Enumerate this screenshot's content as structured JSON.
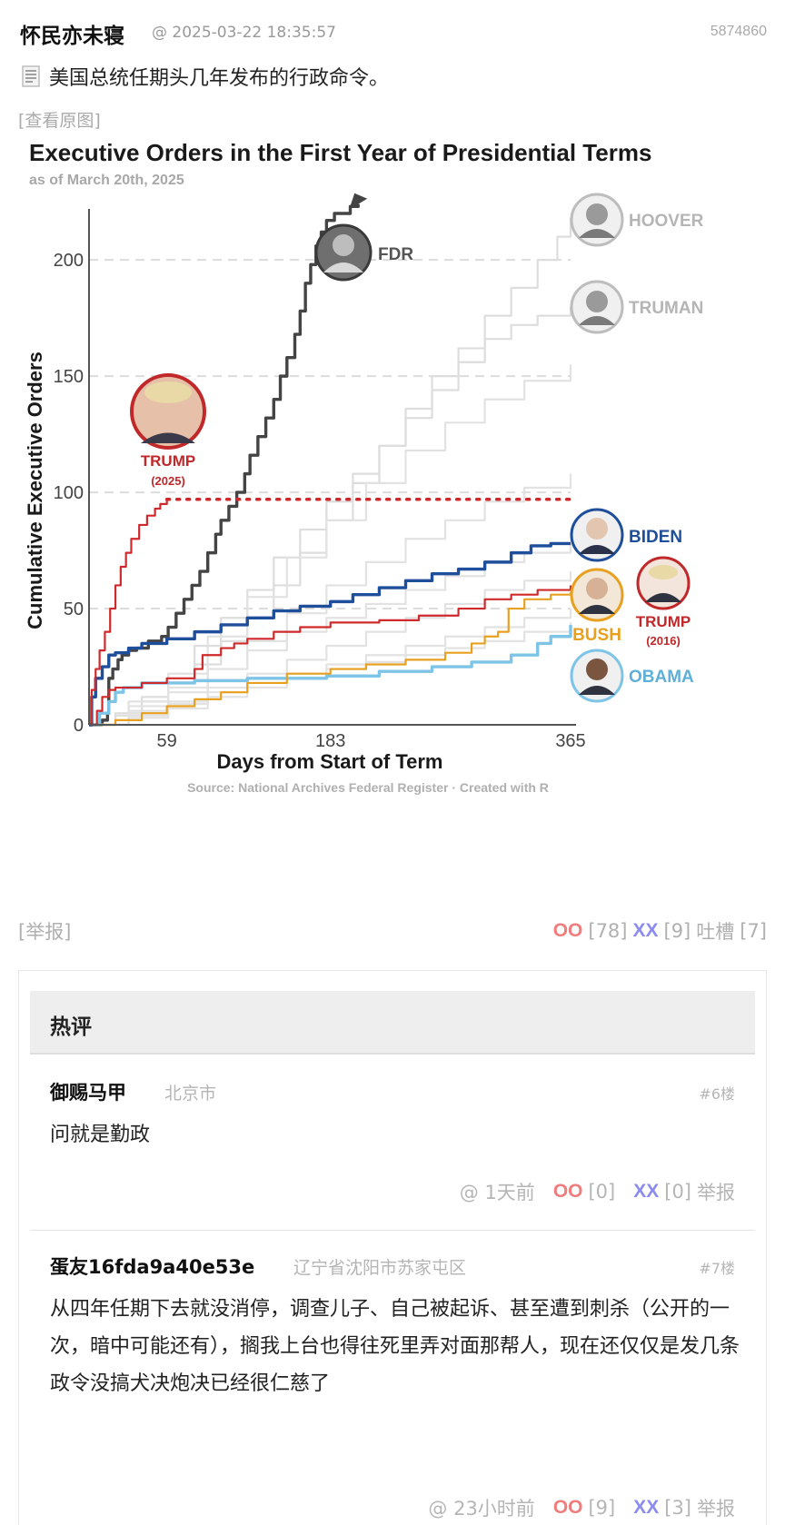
{
  "post": {
    "author": "怀民亦未寝",
    "timestamp": "@ 2025-03-22 18:35:57",
    "post_id": "5874860",
    "text": "美国总统任期头几年发布的行政命令。",
    "view_original": "[查看原图]",
    "report": "[举报]",
    "oo_label": "OO",
    "oo_count": "[78]",
    "xx_label": "XX",
    "xx_count": "[9]",
    "tucao_label": "吐槽",
    "tucao_count": "[7]"
  },
  "chart_data": {
    "type": "line",
    "title": "Executive Orders in the First Year of Presidential Terms",
    "subtitle": "as of March 20th, 2025",
    "xlabel": "Days from Start of Term",
    "ylabel": "Cumulative Executive Orders",
    "x_ticks": [
      59,
      183,
      365
    ],
    "y_ticks": [
      0,
      50,
      100,
      150,
      200
    ],
    "xlim": [
      0,
      365
    ],
    "ylim": [
      0,
      220
    ],
    "source": "Source: National Archives Federal Register  ·  Created with R",
    "grid": "horizontal dashed",
    "series": [
      {
        "name": "FDR",
        "color": "#444444",
        "points": [
          [
            0,
            0
          ],
          [
            10,
            2
          ],
          [
            14,
            5
          ],
          [
            15,
            20
          ],
          [
            18,
            24
          ],
          [
            22,
            28
          ],
          [
            25,
            30
          ],
          [
            30,
            32
          ],
          [
            36,
            33
          ],
          [
            45,
            36
          ],
          [
            55,
            38
          ],
          [
            60,
            42
          ],
          [
            66,
            48
          ],
          [
            72,
            54
          ],
          [
            78,
            60
          ],
          [
            84,
            66
          ],
          [
            90,
            74
          ],
          [
            96,
            82
          ],
          [
            100,
            88
          ],
          [
            106,
            94
          ],
          [
            112,
            100
          ],
          [
            118,
            108
          ],
          [
            122,
            116
          ],
          [
            128,
            124
          ],
          [
            134,
            132
          ],
          [
            140,
            140
          ],
          [
            145,
            150
          ],
          [
            150,
            158
          ],
          [
            156,
            168
          ],
          [
            160,
            178
          ],
          [
            164,
            190
          ],
          [
            168,
            198
          ],
          [
            172,
            206
          ],
          [
            176,
            212
          ],
          [
            180,
            217
          ],
          [
            186,
            220
          ],
          [
            192,
            220
          ],
          [
            198,
            223
          ],
          [
            204,
            224
          ]
        ]
      },
      {
        "name": "HOOVER",
        "color": "#dddddd",
        "points": [
          [
            0,
            0
          ],
          [
            20,
            5
          ],
          [
            40,
            10
          ],
          [
            60,
            18
          ],
          [
            80,
            26
          ],
          [
            100,
            36
          ],
          [
            120,
            46
          ],
          [
            140,
            60
          ],
          [
            160,
            74
          ],
          [
            180,
            88
          ],
          [
            200,
            104
          ],
          [
            220,
            120
          ],
          [
            240,
            136
          ],
          [
            260,
            150
          ],
          [
            280,
            162
          ],
          [
            300,
            176
          ],
          [
            320,
            188
          ],
          [
            340,
            200
          ],
          [
            355,
            210
          ],
          [
            365,
            218
          ]
        ]
      },
      {
        "name": "TRUMAN",
        "color": "#dddddd",
        "points": [
          [
            0,
            0
          ],
          [
            20,
            4
          ],
          [
            40,
            12
          ],
          [
            60,
            22
          ],
          [
            80,
            34
          ],
          [
            100,
            46
          ],
          [
            120,
            58
          ],
          [
            140,
            72
          ],
          [
            160,
            84
          ],
          [
            180,
            96
          ],
          [
            200,
            108
          ],
          [
            220,
            120
          ],
          [
            240,
            132
          ],
          [
            260,
            144
          ],
          [
            280,
            156
          ],
          [
            300,
            166
          ],
          [
            320,
            172
          ],
          [
            340,
            176
          ],
          [
            365,
            180
          ]
        ]
      },
      {
        "name": "",
        "color": "#e2e2e2",
        "points": [
          [
            0,
            0
          ],
          [
            30,
            10
          ],
          [
            60,
            22
          ],
          [
            90,
            38
          ],
          [
            120,
            55
          ],
          [
            150,
            72
          ],
          [
            180,
            88
          ],
          [
            210,
            104
          ],
          [
            240,
            118
          ],
          [
            270,
            130
          ],
          [
            300,
            140
          ],
          [
            330,
            148
          ],
          [
            365,
            155
          ]
        ]
      },
      {
        "name": "",
        "color": "#e2e2e2",
        "points": [
          [
            0,
            0
          ],
          [
            30,
            6
          ],
          [
            60,
            14
          ],
          [
            90,
            24
          ],
          [
            120,
            36
          ],
          [
            150,
            48
          ],
          [
            180,
            60
          ],
          [
            210,
            70
          ],
          [
            240,
            80
          ],
          [
            270,
            88
          ],
          [
            300,
            96
          ],
          [
            330,
            102
          ],
          [
            365,
            108
          ]
        ]
      },
      {
        "name": "",
        "color": "#e2e2e2",
        "points": [
          [
            0,
            0
          ],
          [
            30,
            8
          ],
          [
            60,
            16
          ],
          [
            90,
            24
          ],
          [
            120,
            32
          ],
          [
            150,
            40
          ],
          [
            180,
            46
          ],
          [
            210,
            52
          ],
          [
            240,
            58
          ],
          [
            270,
            64
          ],
          [
            300,
            70
          ],
          [
            330,
            74
          ],
          [
            365,
            78
          ]
        ]
      },
      {
        "name": "",
        "color": "#e2e2e2",
        "points": [
          [
            0,
            0
          ],
          [
            30,
            5
          ],
          [
            60,
            10
          ],
          [
            90,
            16
          ],
          [
            120,
            22
          ],
          [
            150,
            28
          ],
          [
            180,
            34
          ],
          [
            210,
            40
          ],
          [
            240,
            46
          ],
          [
            270,
            52
          ],
          [
            300,
            58
          ],
          [
            330,
            62
          ],
          [
            365,
            66
          ]
        ]
      },
      {
        "name": "",
        "color": "#e2e2e2",
        "points": [
          [
            0,
            0
          ],
          [
            30,
            4
          ],
          [
            60,
            9
          ],
          [
            90,
            14
          ],
          [
            120,
            18
          ],
          [
            150,
            22
          ],
          [
            180,
            26
          ],
          [
            210,
            30
          ],
          [
            240,
            34
          ],
          [
            270,
            38
          ],
          [
            300,
            42
          ],
          [
            330,
            46
          ],
          [
            365,
            50
          ]
        ]
      },
      {
        "name": "",
        "color": "#e2e2e2",
        "points": [
          [
            0,
            0
          ],
          [
            30,
            3
          ],
          [
            60,
            7
          ],
          [
            90,
            12
          ],
          [
            120,
            16
          ],
          [
            150,
            20
          ],
          [
            180,
            24
          ],
          [
            210,
            27
          ],
          [
            240,
            30
          ],
          [
            270,
            33
          ],
          [
            300,
            36
          ],
          [
            330,
            40
          ],
          [
            365,
            44
          ]
        ]
      },
      {
        "name": "OBAMA",
        "color": "#7ec4e6",
        "points": [
          [
            0,
            0
          ],
          [
            8,
            5
          ],
          [
            15,
            10
          ],
          [
            20,
            14
          ],
          [
            26,
            16
          ],
          [
            40,
            18
          ],
          [
            59,
            18
          ],
          [
            80,
            19
          ],
          [
            120,
            20
          ],
          [
            180,
            21
          ],
          [
            220,
            23
          ],
          [
            260,
            25
          ],
          [
            290,
            27
          ],
          [
            320,
            30
          ],
          [
            340,
            35
          ],
          [
            350,
            38
          ],
          [
            365,
            43
          ]
        ]
      },
      {
        "name": "BUSH",
        "color": "#e8a020",
        "points": [
          [
            0,
            0
          ],
          [
            20,
            2
          ],
          [
            40,
            5
          ],
          [
            59,
            8
          ],
          [
            80,
            11
          ],
          [
            100,
            14
          ],
          [
            120,
            18
          ],
          [
            150,
            22
          ],
          [
            183,
            24
          ],
          [
            210,
            26
          ],
          [
            240,
            28
          ],
          [
            270,
            31
          ],
          [
            290,
            35
          ],
          [
            300,
            38
          ],
          [
            310,
            40
          ],
          [
            315,
            40
          ],
          [
            318,
            50
          ],
          [
            330,
            54
          ],
          [
            350,
            56
          ],
          [
            365,
            57
          ]
        ]
      },
      {
        "name": "TRUMP (2016)",
        "color": "#d0292b",
        "points": [
          [
            0,
            0
          ],
          [
            6,
            6
          ],
          [
            10,
            12
          ],
          [
            15,
            15
          ],
          [
            20,
            16
          ],
          [
            40,
            18
          ],
          [
            59,
            20
          ],
          [
            80,
            24
          ],
          [
            86,
            30
          ],
          [
            90,
            30
          ],
          [
            100,
            33
          ],
          [
            110,
            35
          ],
          [
            120,
            37
          ],
          [
            140,
            40
          ],
          [
            160,
            42
          ],
          [
            183,
            44
          ],
          [
            220,
            45
          ],
          [
            250,
            47
          ],
          [
            280,
            50
          ],
          [
            300,
            54
          ],
          [
            320,
            56
          ],
          [
            340,
            58
          ],
          [
            365,
            60
          ]
        ]
      },
      {
        "name": "BIDEN",
        "color": "#1f4e9a",
        "points": [
          [
            0,
            0
          ],
          [
            2,
            12
          ],
          [
            5,
            20
          ],
          [
            10,
            25
          ],
          [
            15,
            30
          ],
          [
            20,
            31
          ],
          [
            30,
            33
          ],
          [
            40,
            35
          ],
          [
            59,
            37
          ],
          [
            80,
            40
          ],
          [
            100,
            43
          ],
          [
            120,
            46
          ],
          [
            140,
            49
          ],
          [
            160,
            51
          ],
          [
            183,
            53
          ],
          [
            200,
            56
          ],
          [
            220,
            59
          ],
          [
            240,
            62
          ],
          [
            260,
            65
          ],
          [
            280,
            67
          ],
          [
            300,
            70
          ],
          [
            320,
            74
          ],
          [
            335,
            77
          ],
          [
            350,
            78
          ],
          [
            365,
            78
          ]
        ]
      },
      {
        "name": "TRUMP (2025)",
        "color": "#d0292b",
        "points": [
          [
            0,
            0
          ],
          [
            2,
            15
          ],
          [
            5,
            24
          ],
          [
            8,
            32
          ],
          [
            12,
            40
          ],
          [
            16,
            50
          ],
          [
            20,
            60
          ],
          [
            24,
            68
          ],
          [
            28,
            74
          ],
          [
            32,
            80
          ],
          [
            38,
            86
          ],
          [
            44,
            90
          ],
          [
            50,
            93
          ],
          [
            54,
            95
          ],
          [
            59,
            97
          ]
        ]
      }
    ],
    "projection": {
      "name": "TRUMP (2025) pace",
      "color": "#d0292b",
      "y": 97,
      "from_x": 59,
      "to_x": 365
    },
    "labels": {
      "fdr": "FDR",
      "hoover": "HOOVER",
      "truman": "TRUMAN",
      "trump2025_name": "TRUMP",
      "trump2025_year": "(2025)",
      "biden": "BIDEN",
      "trump2016_name": "TRUMP",
      "trump2016_year": "(2016)",
      "bush": "BUSH",
      "obama": "OBAMA"
    },
    "label_colors": {
      "fdr": "#555555",
      "hoover": "#b5b5b5",
      "truman": "#b5b5b5",
      "trump2025": "#c0282a",
      "biden": "#1f4e9a",
      "trump2016": "#c0282a",
      "bush": "#e8a020",
      "obama": "#5fb0d8"
    }
  },
  "comments": {
    "section_title": "热评",
    "items": [
      {
        "author": "御赐马甲",
        "location": "北京市",
        "floor": "#6楼",
        "body": "问就是勤政",
        "time": "@ 1天前",
        "oo_label": "OO",
        "oo_count": "[0]",
        "xx_label": "XX",
        "xx_count": "[0]",
        "report": "举报"
      },
      {
        "author": "蛋友16fda9a40e53e",
        "location": "辽宁省沈阳市苏家屯区",
        "floor": "#7楼",
        "body": "从四年任期下去就没消停，调查儿子、自己被起诉、甚至遭到刺杀（公开的一次，暗中可能还有），搁我上台也得往死里弄对面那帮人，现在还仅仅是发几条政令没搞犬决炮决已经很仁慈了",
        "time": "@ 23小时前",
        "oo_label": "OO",
        "oo_count": "[9]",
        "xx_label": "XX",
        "xx_count": "[3]",
        "report": "举报"
      }
    ]
  }
}
